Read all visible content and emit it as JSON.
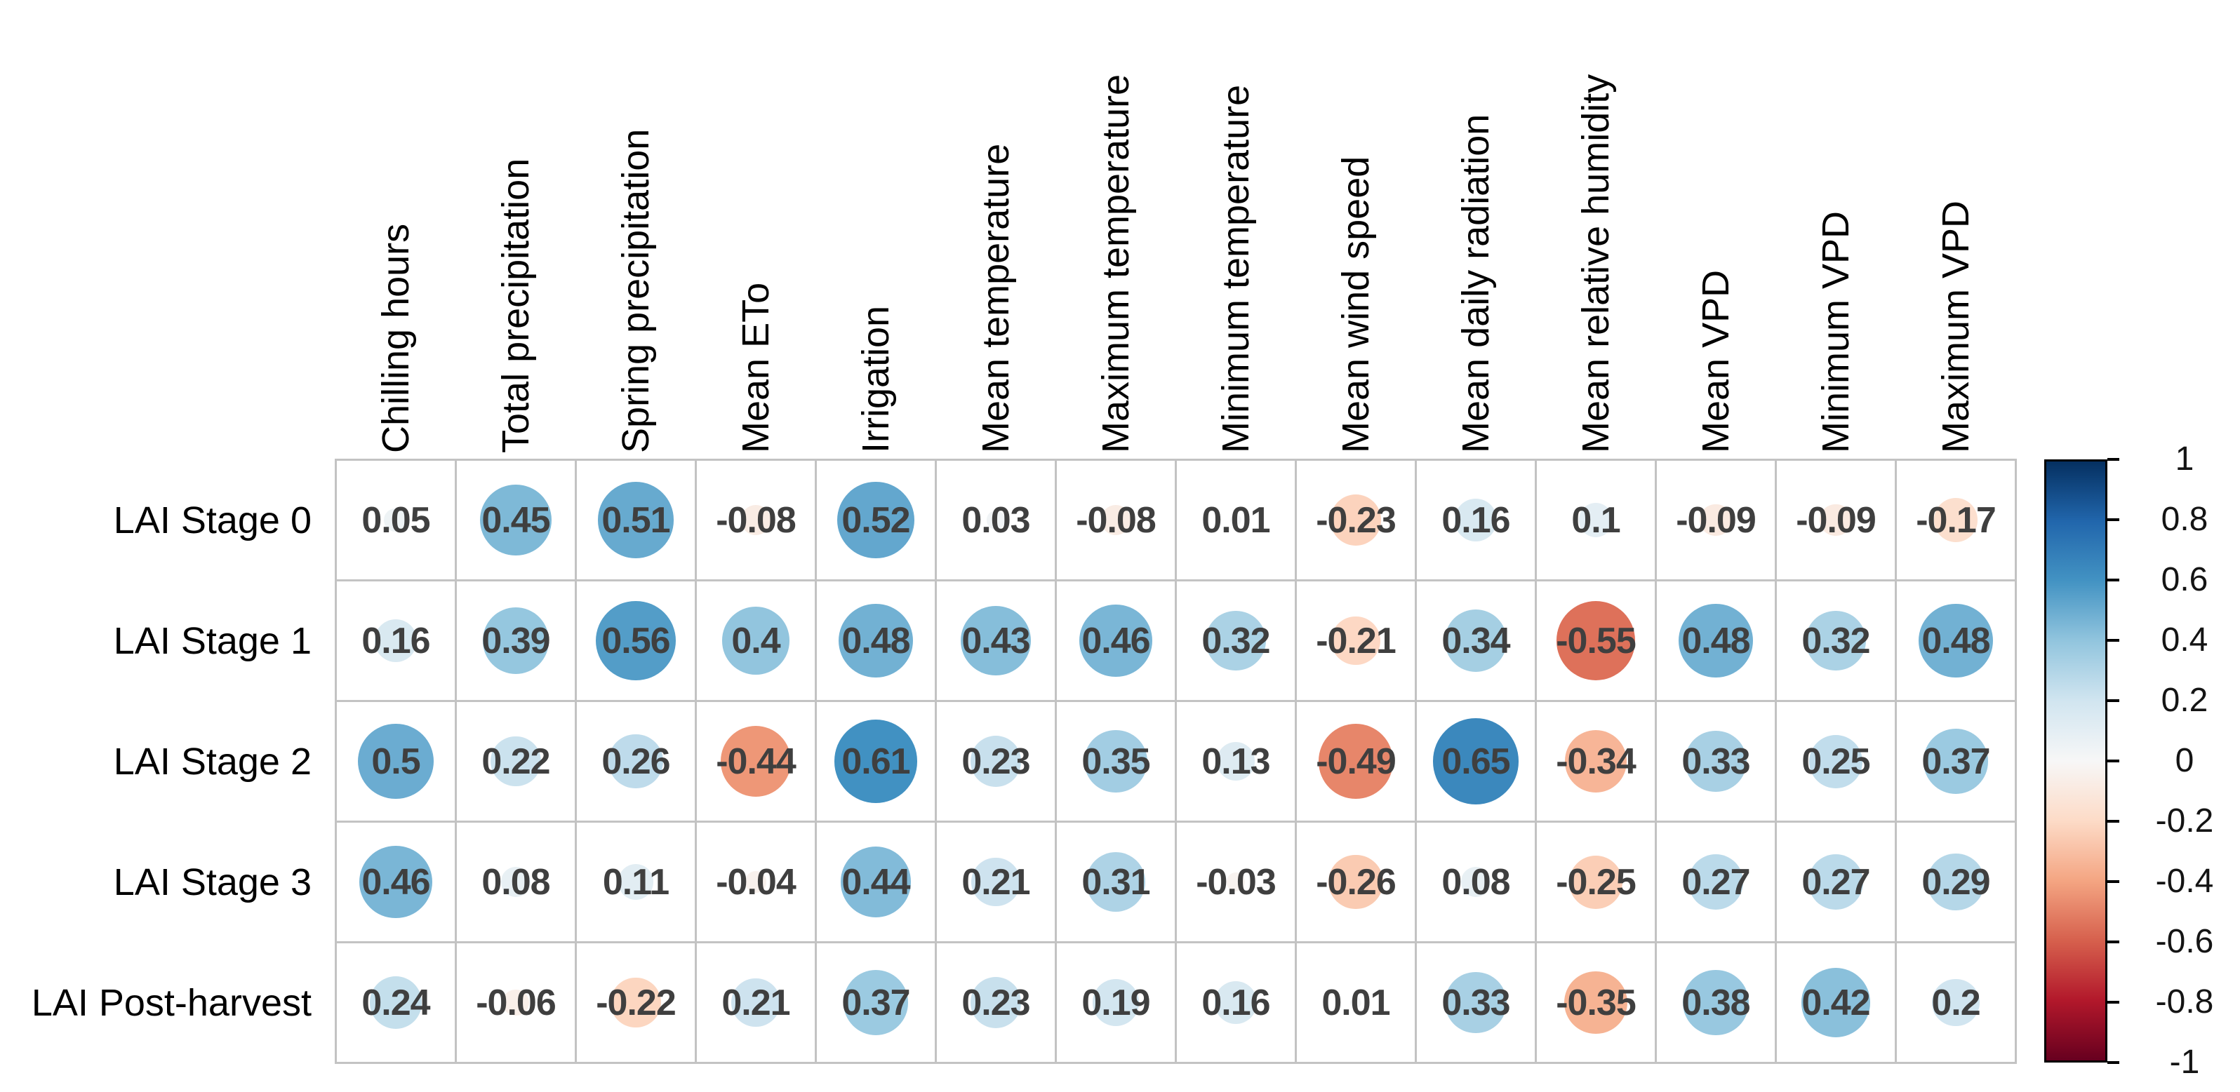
{
  "chart_data": {
    "type": "heatmap",
    "subtype": "correlation-matrix-corrplot",
    "title": "",
    "columns": [
      "Chilling hours",
      "Total precipitation",
      "Spring precipitation",
      "Mean ETo",
      "Irrigation",
      "Mean temperature",
      "Maximum temperature",
      "Minimum temperature",
      "Mean wind speed",
      "Mean daily radiation",
      "Mean relative humidity",
      "Mean VPD",
      "Minimum VPD",
      "Maximum VPD"
    ],
    "rows": [
      "LAI Stage 0",
      "LAI Stage 1",
      "LAI Stage 2",
      "LAI Stage 3",
      "LAI Post-harvest"
    ],
    "matrix": [
      [
        "0.05",
        "0.45",
        "0.51",
        "-0.08",
        "0.52",
        "0.03",
        "-0.08",
        "0.01",
        "-0.23",
        "0.16",
        "0.1",
        "-0.09",
        "-0.09",
        "-0.17"
      ],
      [
        "0.16",
        "0.39",
        "0.56",
        "0.4",
        "0.48",
        "0.43",
        "0.46",
        "0.32",
        "-0.21",
        "0.34",
        "-0.55",
        "0.48",
        "0.32",
        "0.48"
      ],
      [
        "0.5",
        "0.22",
        "0.26",
        "-0.44",
        "0.61",
        "0.23",
        "0.35",
        "0.13",
        "-0.49",
        "0.65",
        "-0.34",
        "0.33",
        "0.25",
        "0.37"
      ],
      [
        "0.46",
        "0.08",
        "0.11",
        "-0.04",
        "0.44",
        "0.21",
        "0.31",
        "-0.03",
        "-0.26",
        "0.08",
        "-0.25",
        "0.27",
        "0.27",
        "0.29"
      ],
      [
        "0.24",
        "-0.06",
        "-0.22",
        "0.21",
        "0.37",
        "0.23",
        "0.19",
        "0.16",
        "0.01",
        "0.33",
        "-0.35",
        "0.38",
        "0.42",
        "0.2"
      ]
    ],
    "glyph": "circle-sized-by-abs-value-behind-number",
    "grid": true,
    "colorbar": {
      "position": "right",
      "range": [
        -1,
        1
      ],
      "ticks": [
        "1",
        "0.8",
        "0.6",
        "0.4",
        "0.2",
        "0",
        "-0.2",
        "-0.4",
        "-0.6",
        "-0.8",
        "-1"
      ]
    },
    "palette": {
      "name": "RdBu",
      "anchors": [
        {
          "v": -1.0,
          "c": "#67001F"
        },
        {
          "v": -0.8,
          "c": "#B2182B"
        },
        {
          "v": -0.6,
          "c": "#D6604D"
        },
        {
          "v": -0.4,
          "c": "#F4A582"
        },
        {
          "v": -0.2,
          "c": "#FDDBC7"
        },
        {
          "v": 0.0,
          "c": "#F7F7F7"
        },
        {
          "v": 0.2,
          "c": "#D1E5F0"
        },
        {
          "v": 0.4,
          "c": "#92C5DE"
        },
        {
          "v": 0.6,
          "c": "#4393C3"
        },
        {
          "v": 0.8,
          "c": "#2166AC"
        },
        {
          "v": 1.0,
          "c": "#053061"
        }
      ]
    },
    "colors": {
      "background": "#ffffff",
      "grid_line": "#c3c3c3",
      "number_text": "#3f3f3f",
      "label_text": "#000000"
    }
  }
}
